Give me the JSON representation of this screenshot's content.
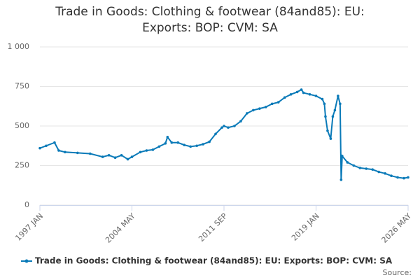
{
  "chart_data": {
    "type": "line",
    "title": "Trade in Goods: Clothing & footwear (84and85): EU: Exports: BOP: CVM: SA",
    "source_label": "Source:",
    "x": [
      "1997 JAN",
      "1997 JUL",
      "1998 MAR",
      "1998 JUL",
      "1999 JAN",
      "2000 JAN",
      "2001 JAN",
      "2002 JAN",
      "2002 JUL",
      "2003 JAN",
      "2003 JUL",
      "2004 JAN",
      "2004 MAY",
      "2005 JAN",
      "2005 JUL",
      "2006 JAN",
      "2006 JUL",
      "2007 JAN",
      "2007 MAR",
      "2007 JUL",
      "2008 JAN",
      "2008 JUL",
      "2009 JAN",
      "2009 JUL",
      "2010 JAN",
      "2010 JUL",
      "2011 JAN",
      "2011 JUL",
      "2011 SEP",
      "2012 JAN",
      "2012 JUL",
      "2013 JAN",
      "2013 JUL",
      "2014 JAN",
      "2014 JUL",
      "2015 JAN",
      "2015 JUL",
      "2016 JAN",
      "2016 JUL",
      "2017 JAN",
      "2017 JUL",
      "2017 NOV",
      "2018 JAN",
      "2018 JUL",
      "2019 JAN",
      "2019 JUL",
      "2019 SEP",
      "2019 OCT",
      "2019 DEC",
      "2020 MAR",
      "2020 MAY",
      "2020 JUL",
      "2020 OCT",
      "2020 DEC",
      "2021 JAN",
      "2021 FEB",
      "2021 JUL",
      "2022 JAN",
      "2022 JUL",
      "2023 JAN",
      "2023 JUL",
      "2024 JAN",
      "2024 JUL",
      "2025 JAN",
      "2025 JUL",
      "2026 JAN",
      "2026 MAY"
    ],
    "series": [
      {
        "name": "Trade in Goods: Clothing & footwear (84and85): EU: Exports: BOP: CVM: SA",
        "color": "#0a7ab8",
        "values": [
          360,
          375,
          395,
          345,
          335,
          330,
          325,
          305,
          315,
          300,
          315,
          290,
          305,
          335,
          345,
          350,
          370,
          390,
          430,
          395,
          395,
          380,
          370,
          375,
          385,
          400,
          450,
          490,
          500,
          490,
          500,
          530,
          580,
          600,
          610,
          620,
          640,
          650,
          680,
          700,
          715,
          730,
          710,
          700,
          690,
          670,
          640,
          560,
          470,
          420,
          560,
          600,
          690,
          640,
          160,
          310,
          270,
          250,
          235,
          230,
          225,
          210,
          200,
          185,
          175,
          170,
          175
        ]
      }
    ],
    "ylim": [
      0,
      1000
    ],
    "yticks": [
      0,
      250,
      500,
      750,
      {
        "value": 1000,
        "label": "1 000"
      }
    ],
    "xticks": [
      "1997 JAN",
      "2004 MAY",
      "2011 SEP",
      "2019 JAN",
      "2026 MAY"
    ],
    "grid": true
  }
}
